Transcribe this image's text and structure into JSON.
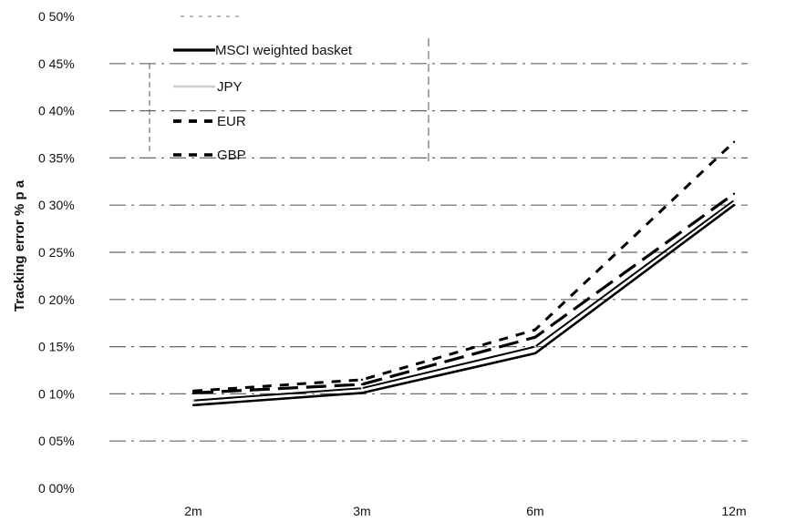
{
  "chart_data": {
    "type": "line",
    "title": "",
    "xlabel": "",
    "ylabel": "Tracking error % p a",
    "categories": [
      "2m",
      "3m",
      "6m",
      "12m"
    ],
    "ylim": [
      0,
      0.5
    ],
    "yticks": [
      {
        "value": 0.0,
        "label": "0 00%"
      },
      {
        "value": 0.05,
        "label": "0 05%"
      },
      {
        "value": 0.1,
        "label": "0 10%"
      },
      {
        "value": 0.15,
        "label": "0 15%"
      },
      {
        "value": 0.2,
        "label": "0 20%"
      },
      {
        "value": 0.25,
        "label": "0 25%"
      },
      {
        "value": 0.3,
        "label": "0 30%"
      },
      {
        "value": 0.35,
        "label": "0 35%"
      },
      {
        "value": 0.4,
        "label": "0 40%"
      },
      {
        "value": 0.45,
        "label": "0 45%"
      },
      {
        "value": 0.5,
        "label": "0 50%"
      }
    ],
    "grid": true,
    "legend_position": "top-left",
    "series": [
      {
        "name": "MSCI weighted basket",
        "style": "solid",
        "color": "#000000",
        "values": [
          0.088,
          0.101,
          0.143,
          0.3
        ]
      },
      {
        "name": "JPY",
        "style": "light",
        "color": "#cccccc",
        "values": [
          0.093,
          0.106,
          0.15,
          0.305
        ]
      },
      {
        "name": "EUR",
        "style": "long-dash",
        "color": "#000000",
        "values": [
          0.101,
          0.11,
          0.16,
          0.312
        ]
      },
      {
        "name": "GBP",
        "style": "short-dash",
        "color": "#000000",
        "values": [
          0.103,
          0.115,
          0.168,
          0.367
        ]
      }
    ]
  }
}
